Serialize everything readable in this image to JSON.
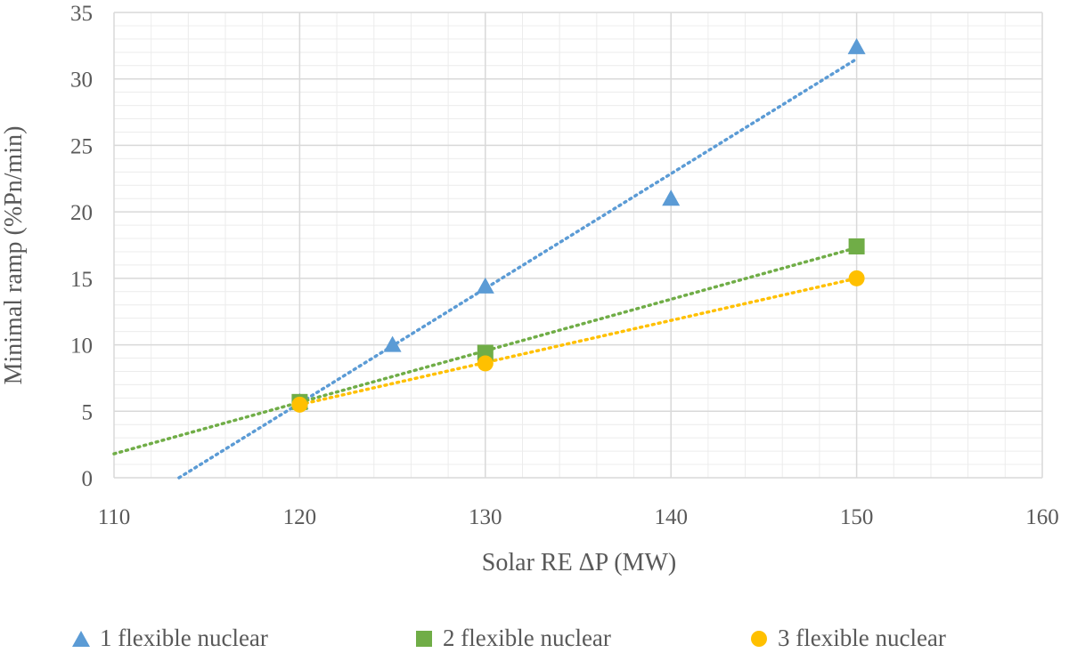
{
  "chart_data": {
    "type": "scatter",
    "title": "",
    "xlabel": "Solar RE ΔP (MW)",
    "ylabel": "Minimal ramp (%Pn/min)",
    "xlim": [
      110,
      160
    ],
    "ylim": [
      0,
      35
    ],
    "x_ticks": [
      "110",
      "120",
      "130",
      "140",
      "150",
      "160"
    ],
    "y_ticks": [
      "0",
      "5",
      "10",
      "15",
      "20",
      "25",
      "30",
      "35"
    ],
    "grid": true,
    "legend_position": "bottom",
    "trendline": "linear, dotted",
    "series": [
      {
        "name": "1 flexible nuclear",
        "marker": "triangle",
        "color": "#5B9BD5",
        "x": [
          120,
          125,
          130,
          140,
          150
        ],
        "y": [
          5.7,
          10.0,
          14.4,
          21.0,
          32.4
        ],
        "trend": {
          "x": [
            113.5,
            150
          ],
          "y": [
            0,
            31.5
          ]
        }
      },
      {
        "name": "2 flexible nuclear",
        "marker": "square",
        "color": "#70AD47",
        "x": [
          120,
          130,
          150
        ],
        "y": [
          5.7,
          9.4,
          17.4
        ],
        "trend": {
          "x": [
            110,
            150
          ],
          "y": [
            1.8,
            17.3
          ]
        }
      },
      {
        "name": "3 flexible nuclear",
        "marker": "circle",
        "color": "#FFC000",
        "x": [
          120,
          130,
          150
        ],
        "y": [
          5.5,
          8.6,
          15.0
        ],
        "trend": {
          "x": [
            120,
            150
          ],
          "y": [
            5.5,
            15.0
          ]
        }
      }
    ]
  }
}
